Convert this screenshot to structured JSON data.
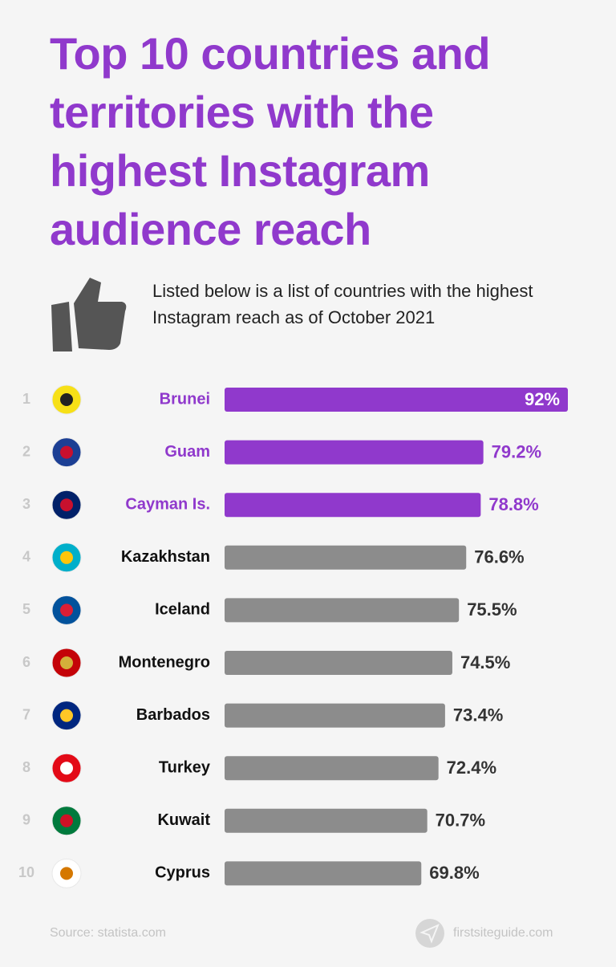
{
  "chart_data": {
    "type": "bar",
    "title": "Top 10 countries and territories with the highest Instagram audience reach",
    "subtitle": "Listed below is a list of countries with the highest Instagram reach as of October 2021",
    "ranks": [
      "1",
      "2",
      "3",
      "4",
      "5",
      "6",
      "7",
      "8",
      "9",
      "10"
    ],
    "categories": [
      "Brunei",
      "Guam",
      "Cayman Is.",
      "Kazakhstan",
      "Iceland",
      "Montenegro",
      "Barbados",
      "Turkey",
      "Kuwait",
      "Cyprus"
    ],
    "values": [
      92,
      79.2,
      78.8,
      76.6,
      75.5,
      74.5,
      73.4,
      72.4,
      70.7,
      69.8
    ],
    "value_labels": [
      "92%",
      "79.2%",
      "78.8%",
      "76.6%",
      "75.5%",
      "74.5%",
      "73.4%",
      "72.4%",
      "70.7%",
      "69.8%"
    ],
    "xlim": [
      40,
      92
    ],
    "color": "#8c8c8c",
    "highlight_color": "#9039cc",
    "highlight_count": 3,
    "source": "Source: statista.com",
    "brand": "firstsiteguide.com"
  }
}
